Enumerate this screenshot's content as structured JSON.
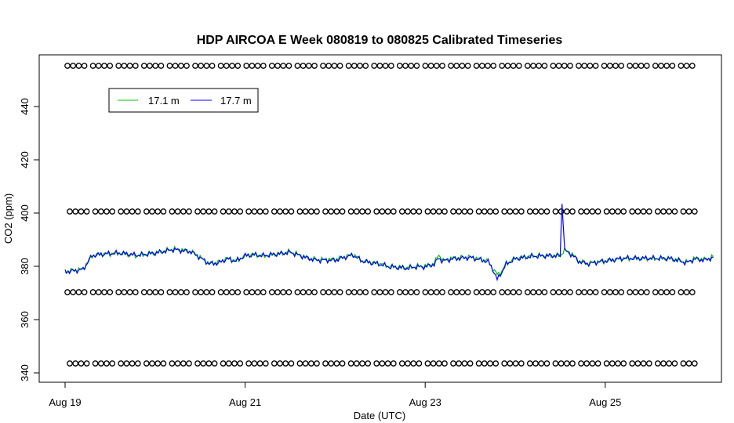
{
  "chart_data": {
    "type": "line",
    "title": "HDP AIRCOA E  Week 080819 to 080825  Calibrated Timeseries",
    "xlabel": "Date (UTC)",
    "ylabel": "CO2 (ppm)",
    "xlim": [
      0,
      7.3
    ],
    "ylim": [
      338,
      456
    ],
    "x_ticks": [
      {
        "value": 0,
        "label": "Aug 19"
      },
      {
        "value": 2,
        "label": "Aug 21"
      },
      {
        "value": 4,
        "label": "Aug 23"
      },
      {
        "value": 6,
        "label": "Aug 25"
      }
    ],
    "y_ticks": [
      340,
      360,
      380,
      400,
      420,
      440
    ],
    "grid": false,
    "legend": {
      "position": "top-left",
      "entries": [
        {
          "name": "17.1 m",
          "color": "#00c000"
        },
        {
          "name": "17.7 m",
          "color": "#0000ff"
        }
      ]
    },
    "series": [
      {
        "name": "17.1 m",
        "color": "#00c000",
        "x": [
          0.0,
          0.1,
          0.2,
          0.3,
          0.4,
          0.5,
          0.6,
          0.8,
          1.0,
          1.2,
          1.4,
          1.6,
          1.7,
          1.8,
          1.9,
          2.0,
          2.1,
          2.2,
          2.4,
          2.5,
          2.7,
          2.8,
          3.0,
          3.1,
          3.2,
          3.3,
          3.4,
          3.5,
          3.6,
          3.8,
          3.9,
          4.0,
          4.1,
          4.15,
          4.2,
          4.3,
          4.5,
          4.7,
          4.75,
          4.8,
          4.85,
          4.9,
          5.0,
          5.2,
          5.4,
          5.5,
          5.55,
          5.6,
          5.65,
          5.7,
          5.8,
          6.0,
          6.2,
          6.4,
          6.6,
          6.7,
          6.8,
          6.9,
          7.0,
          7.1,
          7.2
        ],
        "values": [
          378,
          378.5,
          379,
          384,
          384.5,
          384.8,
          385,
          384,
          385,
          386.5,
          385.5,
          381,
          381.5,
          383,
          382,
          384,
          384.5,
          384,
          384.8,
          385.5,
          383,
          382.5,
          382.5,
          383.5,
          384.5,
          382,
          381.5,
          381,
          380,
          379.5,
          380,
          380,
          381,
          384.5,
          382,
          383,
          383.5,
          382,
          379,
          377,
          378,
          381,
          383,
          384,
          384,
          384,
          386,
          385,
          384,
          382,
          381,
          382,
          383,
          383,
          383,
          383,
          382.5,
          381.5,
          383,
          382.5,
          383.5
        ]
      },
      {
        "name": "17.7 m",
        "color": "#0000ff",
        "x": [
          0.0,
          0.1,
          0.2,
          0.3,
          0.4,
          0.5,
          0.6,
          0.8,
          1.0,
          1.2,
          1.4,
          1.6,
          1.7,
          1.8,
          1.9,
          2.0,
          2.1,
          2.2,
          2.4,
          2.5,
          2.7,
          2.8,
          3.0,
          3.1,
          3.2,
          3.3,
          3.4,
          3.5,
          3.6,
          3.8,
          3.9,
          4.0,
          4.1,
          4.15,
          4.2,
          4.3,
          4.5,
          4.7,
          4.75,
          4.8,
          4.85,
          4.9,
          5.0,
          5.2,
          5.4,
          5.5,
          5.52,
          5.55,
          5.6,
          5.65,
          5.7,
          5.8,
          6.0,
          6.2,
          6.4,
          6.6,
          6.7,
          6.8,
          6.9,
          7.0,
          7.1,
          7.2
        ],
        "values": [
          378,
          378.3,
          378.8,
          384,
          384.5,
          384.8,
          385,
          384.2,
          385,
          386.3,
          385.5,
          381,
          381.2,
          382.8,
          382,
          384,
          384.3,
          384,
          384.8,
          385.3,
          383,
          382.3,
          382.3,
          383.3,
          384.2,
          382,
          381.3,
          380.8,
          379.8,
          379.3,
          379.8,
          379.8,
          380.8,
          383,
          382,
          382.8,
          383.3,
          381.8,
          379,
          375,
          377.8,
          380.8,
          382.8,
          383.8,
          384,
          384,
          404,
          386,
          385,
          383.8,
          382,
          381,
          382,
          383,
          383,
          383,
          383,
          382.3,
          381.3,
          382.8,
          382.3,
          383.3
        ]
      }
    ]
  }
}
